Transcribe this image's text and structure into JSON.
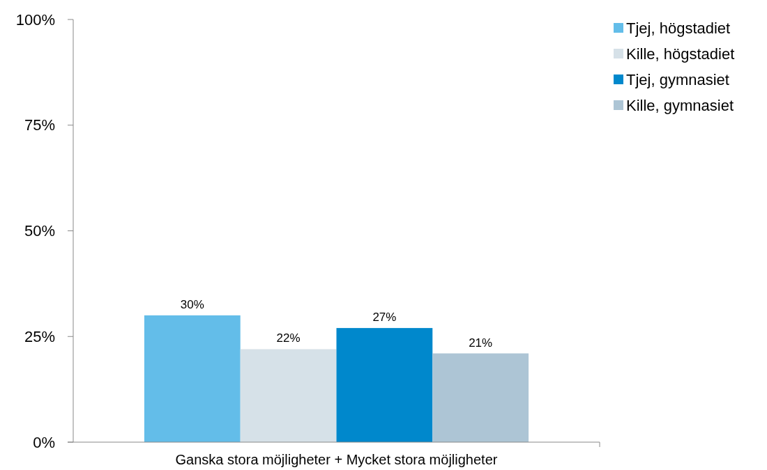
{
  "chart_data": {
    "type": "bar",
    "categories": [
      "Ganska stora möjligheter + Mycket stora möjligheter"
    ],
    "series": [
      {
        "name": "Tjej, högstadiet",
        "color": "#63bde9",
        "values": [
          30
        ],
        "value_labels": [
          "30%"
        ]
      },
      {
        "name": "Kille, högstadiet",
        "color": "#d6e1e8",
        "values": [
          22
        ],
        "value_labels": [
          "22%"
        ]
      },
      {
        "name": "Tjej, gymnasiet",
        "color": "#0088cc",
        "values": [
          27
        ],
        "value_labels": [
          "27%"
        ]
      },
      {
        "name": "Kille, gymnasiet",
        "color": "#adc5d5",
        "values": [
          21
        ],
        "value_labels": [
          "21%"
        ]
      }
    ],
    "ylim": [
      0,
      100
    ],
    "yticks": [
      {
        "value": 0,
        "label": "0%"
      },
      {
        "value": 25,
        "label": "25%"
      },
      {
        "value": 50,
        "label": "50%"
      },
      {
        "value": 75,
        "label": "75%"
      },
      {
        "value": 100,
        "label": "100%"
      }
    ],
    "grid": false,
    "legend": "top right"
  }
}
